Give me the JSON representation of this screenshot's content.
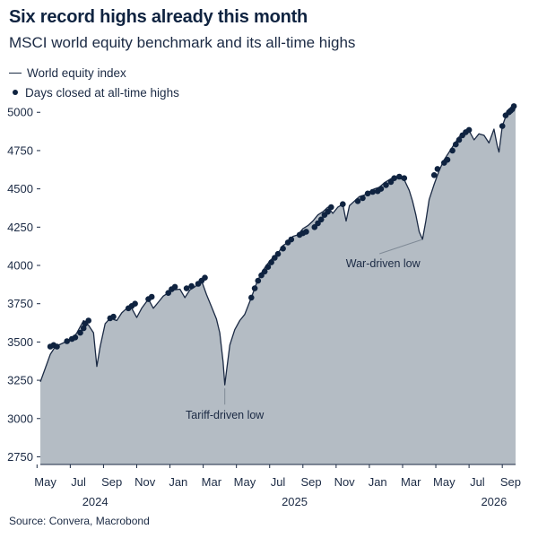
{
  "title": "Six record highs already this month",
  "subtitle": "MSCI world equity benchmark and its all-time highs",
  "legend": {
    "line_label": "World equity index",
    "dot_label": "Days closed at all-time highs"
  },
  "source": "Source: Convera, Macrobond",
  "colors": {
    "line": "#1b2a44",
    "area": "#b4bcc4",
    "dots": "#0f2340",
    "text": "#1b2a44"
  },
  "chart_data": {
    "type": "area",
    "y_ticks": [
      2750,
      3000,
      3250,
      3500,
      3750,
      4000,
      4250,
      4500,
      4750,
      5000
    ],
    "ylim": [
      2700,
      5060
    ],
    "x_ticks": [
      {
        "label": "May",
        "month": 1
      },
      {
        "label": "Jul",
        "month": 3
      },
      {
        "label": "Sep",
        "month": 5
      },
      {
        "label": "Nov",
        "month": 7
      },
      {
        "label": "Jan",
        "month": 9
      },
      {
        "label": "Mar",
        "month": 11
      },
      {
        "label": "May",
        "month": 13
      },
      {
        "label": "Jul",
        "month": 15
      },
      {
        "label": "Sep",
        "month": 17
      },
      {
        "label": "Nov",
        "month": 19
      },
      {
        "label": "Jan",
        "month": 21
      },
      {
        "label": "Mar",
        "month": 23
      },
      {
        "label": "May",
        "month": 25
      },
      {
        "label": "Jul",
        "month": 27
      },
      {
        "label": "Sep",
        "month": 29
      }
    ],
    "year_labels": [
      {
        "label": "2024",
        "month": 4
      },
      {
        "label": "2025",
        "month": 16
      },
      {
        "label": "2026",
        "month": 28
      }
    ],
    "xlim_months": [
      0.7,
      29.3
    ],
    "series_line": [
      [
        0.7,
        3240
      ],
      [
        1.0,
        3330
      ],
      [
        1.3,
        3420
      ],
      [
        1.6,
        3470
      ],
      [
        2.0,
        3490
      ],
      [
        2.3,
        3505
      ],
      [
        2.6,
        3515
      ],
      [
        2.9,
        3560
      ],
      [
        3.3,
        3640
      ],
      [
        3.6,
        3610
      ],
      [
        3.9,
        3560
      ],
      [
        4.1,
        3340
      ],
      [
        4.3,
        3470
      ],
      [
        4.6,
        3620
      ],
      [
        4.9,
        3655
      ],
      [
        5.3,
        3640
      ],
      [
        5.6,
        3690
      ],
      [
        5.9,
        3720
      ],
      [
        6.2,
        3720
      ],
      [
        6.5,
        3660
      ],
      [
        6.8,
        3720
      ],
      [
        7.2,
        3780
      ],
      [
        7.5,
        3720
      ],
      [
        7.8,
        3760
      ],
      [
        8.1,
        3800
      ],
      [
        8.4,
        3820
      ],
      [
        8.7,
        3840
      ],
      [
        9.1,
        3845
      ],
      [
        9.4,
        3790
      ],
      [
        9.7,
        3840
      ],
      [
        10.0,
        3860
      ],
      [
        10.4,
        3900
      ],
      [
        10.7,
        3810
      ],
      [
        11.0,
        3730
      ],
      [
        11.3,
        3650
      ],
      [
        11.5,
        3560
      ],
      [
        11.7,
        3370
      ],
      [
        11.8,
        3220
      ],
      [
        11.9,
        3310
      ],
      [
        12.1,
        3480
      ],
      [
        12.4,
        3580
      ],
      [
        12.7,
        3640
      ],
      [
        13.0,
        3680
      ],
      [
        13.4,
        3790
      ],
      [
        13.7,
        3880
      ],
      [
        14.0,
        3950
      ],
      [
        14.3,
        4000
      ],
      [
        14.6,
        4040
      ],
      [
        15.0,
        4080
      ],
      [
        15.3,
        4130
      ],
      [
        15.6,
        4150
      ],
      [
        15.9,
        4190
      ],
      [
        16.2,
        4200
      ],
      [
        16.5,
        4240
      ],
      [
        16.8,
        4260
      ],
      [
        17.1,
        4290
      ],
      [
        17.4,
        4330
      ],
      [
        17.7,
        4350
      ],
      [
        18.0,
        4380
      ],
      [
        18.3,
        4340
      ],
      [
        18.6,
        4380
      ],
      [
        18.9,
        4400
      ],
      [
        19.1,
        4290
      ],
      [
        19.3,
        4390
      ],
      [
        19.6,
        4420
      ],
      [
        19.9,
        4450
      ],
      [
        20.2,
        4460
      ],
      [
        20.5,
        4480
      ],
      [
        20.8,
        4500
      ],
      [
        21.1,
        4510
      ],
      [
        21.4,
        4540
      ],
      [
        21.7,
        4560
      ],
      [
        22.0,
        4580
      ],
      [
        22.3,
        4570
      ],
      [
        22.6,
        4560
      ],
      [
        22.9,
        4490
      ],
      [
        23.1,
        4420
      ],
      [
        23.3,
        4330
      ],
      [
        23.5,
        4220
      ],
      [
        23.7,
        4170
      ],
      [
        23.9,
        4290
      ],
      [
        24.1,
        4430
      ],
      [
        24.4,
        4530
      ],
      [
        24.7,
        4620
      ],
      [
        25.0,
        4690
      ],
      [
        25.3,
        4740
      ],
      [
        25.6,
        4790
      ],
      [
        25.9,
        4840
      ],
      [
        26.2,
        4870
      ],
      [
        26.5,
        4880
      ],
      [
        26.8,
        4820
      ],
      [
        27.1,
        4860
      ],
      [
        27.4,
        4850
      ],
      [
        27.7,
        4800
      ],
      [
        28.0,
        4890
      ],
      [
        28.2,
        4780
      ],
      [
        28.3,
        4740
      ],
      [
        28.5,
        4910
      ],
      [
        28.7,
        4970
      ],
      [
        28.9,
        5000
      ],
      [
        29.1,
        5020
      ],
      [
        29.3,
        5040
      ]
    ],
    "highs": [
      [
        1.3,
        3470
      ],
      [
        1.5,
        3480
      ],
      [
        1.7,
        3470
      ],
      [
        2.3,
        3505
      ],
      [
        2.6,
        3520
      ],
      [
        2.8,
        3530
      ],
      [
        3.1,
        3560
      ],
      [
        3.3,
        3590
      ],
      [
        3.4,
        3620
      ],
      [
        3.6,
        3640
      ],
      [
        4.9,
        3655
      ],
      [
        5.1,
        3665
      ],
      [
        6.0,
        3720
      ],
      [
        6.2,
        3735
      ],
      [
        6.4,
        3750
      ],
      [
        7.2,
        3780
      ],
      [
        7.4,
        3795
      ],
      [
        8.4,
        3820
      ],
      [
        8.6,
        3845
      ],
      [
        8.8,
        3860
      ],
      [
        9.5,
        3850
      ],
      [
        9.8,
        3865
      ],
      [
        10.2,
        3880
      ],
      [
        10.4,
        3900
      ],
      [
        10.6,
        3920
      ],
      [
        13.4,
        3790
      ],
      [
        13.6,
        3850
      ],
      [
        13.8,
        3900
      ],
      [
        14.0,
        3935
      ],
      [
        14.2,
        3960
      ],
      [
        14.4,
        3990
      ],
      [
        14.6,
        4020
      ],
      [
        14.8,
        4050
      ],
      [
        15.0,
        4075
      ],
      [
        15.3,
        4110
      ],
      [
        15.6,
        4150
      ],
      [
        15.8,
        4170
      ],
      [
        16.3,
        4200
      ],
      [
        16.5,
        4210
      ],
      [
        16.7,
        4220
      ],
      [
        17.2,
        4250
      ],
      [
        17.4,
        4275
      ],
      [
        17.6,
        4300
      ],
      [
        17.8,
        4330
      ],
      [
        18.0,
        4350
      ],
      [
        18.2,
        4380
      ],
      [
        18.9,
        4400
      ],
      [
        19.8,
        4420
      ],
      [
        20.1,
        4440
      ],
      [
        20.4,
        4470
      ],
      [
        20.7,
        4480
      ],
      [
        21.0,
        4485
      ],
      [
        21.2,
        4500
      ],
      [
        21.5,
        4525
      ],
      [
        21.8,
        4545
      ],
      [
        22.0,
        4570
      ],
      [
        22.3,
        4580
      ],
      [
        22.6,
        4570
      ],
      [
        24.4,
        4590
      ],
      [
        24.6,
        4630
      ],
      [
        25.0,
        4670
      ],
      [
        25.2,
        4690
      ],
      [
        25.5,
        4750
      ],
      [
        25.7,
        4790
      ],
      [
        25.9,
        4820
      ],
      [
        26.1,
        4850
      ],
      [
        26.3,
        4870
      ],
      [
        26.5,
        4885
      ],
      [
        28.5,
        4910
      ],
      [
        28.7,
        4980
      ],
      [
        28.9,
        5000
      ],
      [
        29.0,
        5010
      ],
      [
        29.1,
        5020
      ],
      [
        29.2,
        5040
      ]
    ],
    "annotations": [
      {
        "text": "Tariff-driven low",
        "month": 11.8,
        "value": 3220
      },
      {
        "text": "War-driven low",
        "month": 23.7,
        "value": 4170
      }
    ]
  }
}
